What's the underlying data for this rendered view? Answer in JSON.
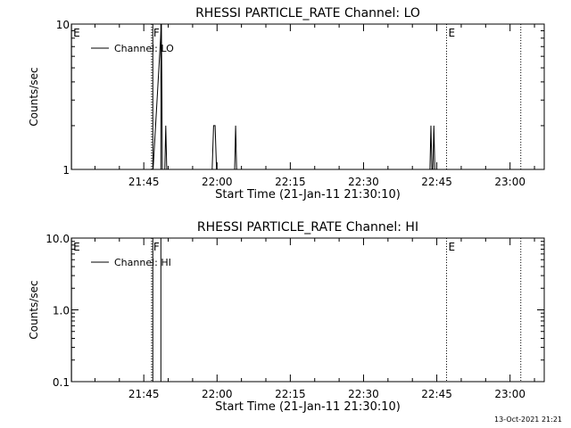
{
  "footer_stamp": "13-Oct-2021 21:21",
  "chart_data": [
    {
      "type": "line",
      "title": "RHESSI PARTICLE_RATE Channel: LO",
      "ylabel": "Counts/sec",
      "xlabel": "Start Time (21-Jan-11 21:30:10)",
      "y_scale": "log",
      "ylim": [
        1,
        10
      ],
      "y_ticks": [
        {
          "value": 1,
          "label": "1"
        },
        {
          "value": 10,
          "label": "10"
        }
      ],
      "xlim_minutes_after_2130": [
        0.17,
        97.0
      ],
      "x_ticks": [
        {
          "value": 15,
          "label": "21:45"
        },
        {
          "value": 30,
          "label": "22:00"
        },
        {
          "value": 45,
          "label": "22:15"
        },
        {
          "value": 60,
          "label": "22:30"
        },
        {
          "value": 75,
          "label": "22:45"
        },
        {
          "value": 90,
          "label": "23:00"
        }
      ],
      "legend": {
        "label": "Channel: LO",
        "placement": "top-left"
      },
      "markers": [
        {
          "label": "E",
          "time": 0.2,
          "style": "solid"
        },
        {
          "label": "F",
          "time": 16.6,
          "style": "dotted"
        },
        {
          "label": "",
          "time": 16.85,
          "style": "solid"
        },
        {
          "label": "",
          "time": 18.5,
          "style": "solid"
        },
        {
          "label": "E",
          "time": 77.0,
          "style": "dotted"
        },
        {
          "label": "",
          "time": 92.2,
          "style": "dotted"
        }
      ],
      "series": [
        {
          "name": "Channel: LO",
          "points": [
            [
              16.9,
              1
            ],
            [
              18.6,
              10
            ],
            [
              18.8,
              1
            ],
            [
              19.3,
              1
            ],
            [
              19.5,
              2
            ],
            [
              19.7,
              1
            ],
            [
              29.0,
              1
            ],
            [
              29.3,
              2
            ],
            [
              29.6,
              2
            ],
            [
              29.9,
              1
            ],
            [
              33.6,
              1
            ],
            [
              33.8,
              2
            ],
            [
              34.0,
              1
            ],
            [
              73.6,
              1
            ],
            [
              73.8,
              2
            ],
            [
              74.0,
              1
            ],
            [
              74.2,
              1
            ],
            [
              74.4,
              2
            ],
            [
              74.6,
              1
            ]
          ]
        }
      ]
    },
    {
      "type": "line",
      "title": "RHESSI PARTICLE_RATE Channel: HI",
      "ylabel": "Counts/sec",
      "xlabel": "Start Time (21-Jan-11 21:30:10)",
      "y_scale": "log",
      "ylim": [
        0.1,
        10
      ],
      "y_ticks": [
        {
          "value": 0.1,
          "label": "0.1"
        },
        {
          "value": 1,
          "label": "1.0"
        },
        {
          "value": 10,
          "label": "10.0"
        }
      ],
      "xlim_minutes_after_2130": [
        0.17,
        97.0
      ],
      "x_ticks": [
        {
          "value": 15,
          "label": "21:45"
        },
        {
          "value": 30,
          "label": "22:00"
        },
        {
          "value": 45,
          "label": "22:15"
        },
        {
          "value": 60,
          "label": "22:30"
        },
        {
          "value": 75,
          "label": "22:45"
        },
        {
          "value": 90,
          "label": "23:00"
        }
      ],
      "legend": {
        "label": "Channel: HI",
        "placement": "top-left"
      },
      "markers": [
        {
          "label": "E",
          "time": 0.2,
          "style": "solid"
        },
        {
          "label": "F",
          "time": 16.6,
          "style": "dotted"
        },
        {
          "label": "",
          "time": 16.85,
          "style": "solid"
        },
        {
          "label": "",
          "time": 18.5,
          "style": "solid"
        },
        {
          "label": "E",
          "time": 77.0,
          "style": "dotted"
        },
        {
          "label": "",
          "time": 92.2,
          "style": "dotted"
        }
      ],
      "series": [
        {
          "name": "Channel: HI",
          "points": []
        }
      ]
    }
  ]
}
